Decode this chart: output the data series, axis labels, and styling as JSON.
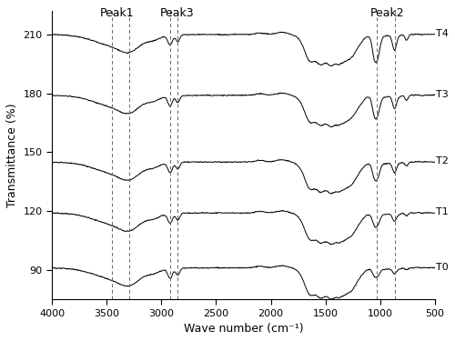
{
  "xlabel": "Wave number (cm⁻¹)",
  "ylabel": "Transmittance (%)",
  "xlim": [
    4000,
    500
  ],
  "ylim": [
    75,
    222
  ],
  "yticks": [
    90,
    120,
    150,
    180,
    210
  ],
  "xticks": [
    4000,
    3500,
    3000,
    2500,
    2000,
    1500,
    1000,
    500
  ],
  "labels": [
    "T0",
    "T1",
    "T2",
    "T3",
    "T4"
  ],
  "baselines": [
    91,
    119,
    145,
    179,
    210
  ],
  "peak_lines_x": [
    3450,
    3290,
    2920,
    2850,
    1030,
    870
  ],
  "peak_labels": [
    {
      "text": "Peak1",
      "x": 3450,
      "ha": "right"
    },
    {
      "text": "Peak3",
      "x": 2950,
      "ha": "right"
    },
    {
      "text": "Peak2",
      "x": 1050,
      "ha": "right"
    }
  ],
  "line_color": "#000000",
  "dashed_color": "#666666",
  "background_color": "#ffffff",
  "label_fontsize": 8,
  "axis_fontsize": 9,
  "peak_label_fontsize": 9,
  "tick_fontsize": 8
}
